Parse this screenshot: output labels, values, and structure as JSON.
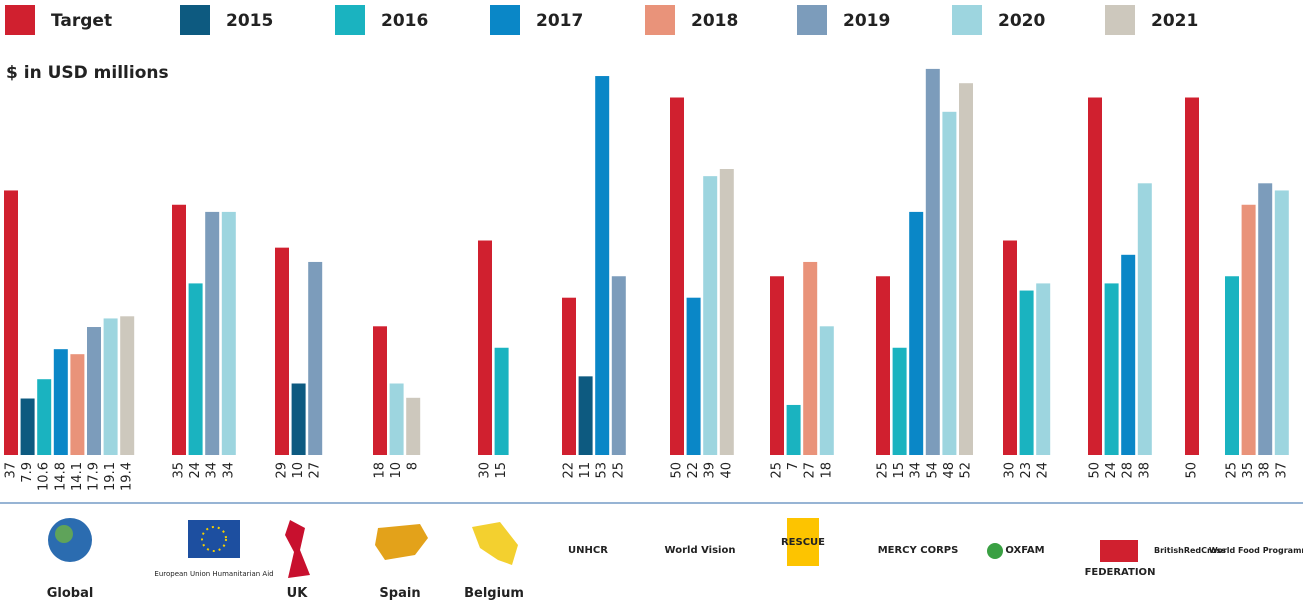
{
  "chart_data": {
    "type": "bar",
    "subtitle": "$ in USD millions",
    "categories": [
      "Global",
      null,
      "UK",
      "Spain",
      "Belgium",
      null,
      null,
      null,
      null,
      null,
      null,
      null,
      null
    ],
    "logos": [
      null,
      "European Union Humanitarian Aid",
      null,
      null,
      null,
      "UNHCR",
      "World Vision",
      "RESCUE",
      "MERCY CORPS",
      "OXFAM",
      "FEDERATION",
      "BritishRedCross",
      "World Food Programme"
    ],
    "series": [
      {
        "name": "Target",
        "color": "#d0202f",
        "values": [
          37,
          35,
          29,
          18,
          30,
          22,
          50,
          25,
          25,
          30,
          50,
          50,
          null
        ]
      },
      {
        "name": "2015",
        "color": "#0d5a80",
        "values": [
          7.9,
          null,
          10,
          null,
          null,
          11,
          null,
          null,
          null,
          null,
          null,
          null,
          null
        ]
      },
      {
        "name": "2016",
        "color": "#1ab3c0",
        "values": [
          10.6,
          24,
          null,
          null,
          15,
          null,
          null,
          7,
          15,
          23,
          24,
          null,
          25
        ]
      },
      {
        "name": "2017",
        "color": "#0a87c7",
        "values": [
          14.8,
          null,
          null,
          null,
          null,
          53,
          22,
          null,
          34,
          null,
          28,
          null,
          null
        ]
      },
      {
        "name": "2018",
        "color": "#e9937a",
        "values": [
          14.1,
          null,
          null,
          null,
          null,
          null,
          null,
          27,
          null,
          null,
          null,
          null,
          35
        ]
      },
      {
        "name": "2019",
        "color": "#7c9cbb",
        "values": [
          17.9,
          34,
          27,
          null,
          null,
          25,
          null,
          null,
          54,
          null,
          null,
          null,
          38
        ]
      },
      {
        "name": "2020",
        "color": "#9dd5df",
        "values": [
          19.1,
          34,
          null,
          10,
          null,
          null,
          39,
          18,
          48,
          24,
          38,
          null,
          37
        ]
      },
      {
        "name": "2021",
        "color": "#cdc8bd",
        "values": [
          19.4,
          null,
          null,
          8,
          null,
          null,
          40,
          null,
          52,
          null,
          null,
          null,
          null
        ]
      }
    ]
  }
}
